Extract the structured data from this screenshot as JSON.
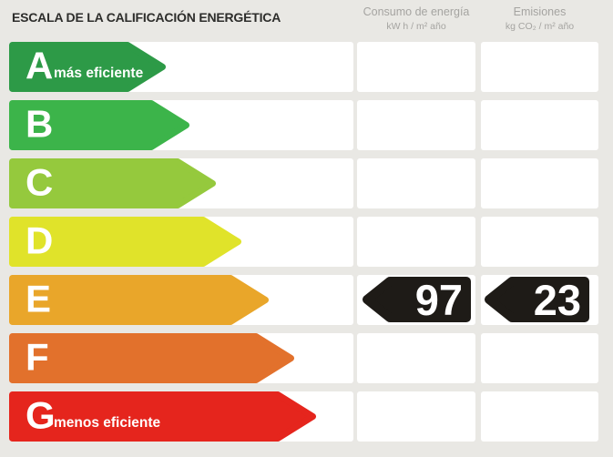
{
  "title": "ESCALA DE LA CALIFICACIÓN ENERGÉTICA",
  "background_color": "#e9e8e4",
  "columns": [
    {
      "title": "Consumo de energía",
      "units": "kW h / m² año"
    },
    {
      "title": "Emisiones",
      "units": "kg CO₂ / m² año"
    }
  ],
  "scale": {
    "rows": [
      {
        "letter": "A",
        "qualifier": "más eficiente",
        "color": "#2d9a47",
        "arrow_width": 172
      },
      {
        "letter": "B",
        "qualifier": "",
        "color": "#3cb44a",
        "arrow_width": 198
      },
      {
        "letter": "C",
        "qualifier": "",
        "color": "#95c93d",
        "arrow_width": 227
      },
      {
        "letter": "D",
        "qualifier": "",
        "color": "#e0e32a",
        "arrow_width": 255
      },
      {
        "letter": "E",
        "qualifier": "",
        "color": "#e9a62a",
        "arrow_width": 285
      },
      {
        "letter": "F",
        "qualifier": "",
        "color": "#e2712c",
        "arrow_width": 313
      },
      {
        "letter": "G",
        "qualifier": "menos eficiente",
        "color": "#e5251d",
        "arrow_width": 337
      }
    ]
  },
  "results": {
    "rating": "E",
    "consumption_value": "97",
    "emissions_value": "23",
    "badge_color": "#1e1b17"
  },
  "chart_data": {
    "type": "bar",
    "title": "ESCALA DE LA CALIFICACIÓN ENERGÉTICA",
    "categories": [
      "A",
      "B",
      "C",
      "D",
      "E",
      "F",
      "G"
    ],
    "values": [
      172,
      198,
      227,
      255,
      285,
      313,
      337
    ],
    "category_labels": [
      "A más eficiente",
      "B",
      "C",
      "D",
      "E",
      "F",
      "G menos eficiente"
    ],
    "bar_colors": [
      "#2d9a47",
      "#3cb44a",
      "#95c93d",
      "#e0e32a",
      "#e9a62a",
      "#e2712c",
      "#e5251d"
    ],
    "annotations": [
      {
        "category": "E",
        "series": "Consumo de energía (kW h / m² año)",
        "value": 97
      },
      {
        "category": "E",
        "series": "Emisiones (kg CO₂ / m² año)",
        "value": 23
      }
    ],
    "xlabel": "",
    "ylabel": "",
    "legend": "none",
    "grid": false
  }
}
